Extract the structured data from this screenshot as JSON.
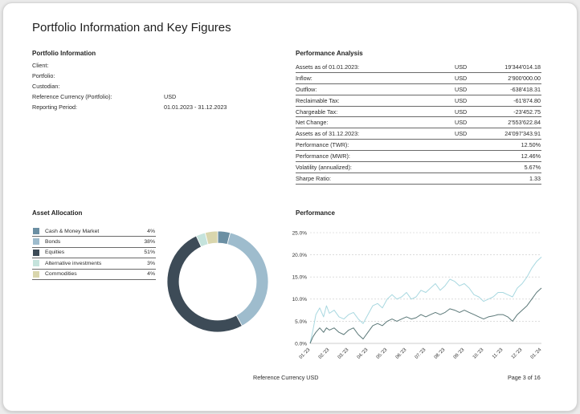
{
  "document": {
    "title": "Portfolio Information and Key Figures",
    "footer_center": "Reference Currency USD",
    "footer_page": "Page 3 of 16"
  },
  "portfolio_info": {
    "title": "Portfolio Information",
    "rows": [
      {
        "label": "Client:",
        "value": ""
      },
      {
        "label": "Portfolio:",
        "value": ""
      },
      {
        "label": "Custodian:",
        "value": ""
      },
      {
        "label": "Reference Currency (Portfolio):",
        "value": "USD"
      },
      {
        "label": "Reporting Period:",
        "value": "01.01.2023 - 31.12.2023"
      }
    ]
  },
  "performance_analysis": {
    "title": "Performance Analysis",
    "rows": [
      {
        "label": "Assets as of 01.01.2023:",
        "currency": "USD",
        "value": "19'344'014.18"
      },
      {
        "label": "Inflow:",
        "currency": "USD",
        "value": "2'900'000.00"
      },
      {
        "label": "Outflow:",
        "currency": "USD",
        "value": "-638'418.31"
      },
      {
        "label": "Reclaimable Tax:",
        "currency": "USD",
        "value": "-61'874.80"
      },
      {
        "label": "Chargeable Tax:",
        "currency": "USD",
        "value": "-23'452.75"
      },
      {
        "label": "Net Change:",
        "currency": "USD",
        "value": "2'553'622.84"
      },
      {
        "label": "Assets as of 31.12.2023:",
        "currency": "USD",
        "value": "24'097'343.91"
      },
      {
        "label": "Performance (TWR):",
        "currency": "",
        "value": "12.50%"
      },
      {
        "label": "Performance (MWR):",
        "currency": "",
        "value": "12.46%"
      },
      {
        "label": "Volatility (annualized):",
        "currency": "",
        "value": "5.67%"
      },
      {
        "label": "Sharpe Ratio:",
        "currency": "",
        "value": "1.33"
      }
    ]
  },
  "asset_allocation": {
    "title": "Asset Allocation",
    "items": [
      {
        "label": "Cash & Money Market",
        "value_text": "4%",
        "color": "#6b8fa3"
      },
      {
        "label": "Bonds",
        "value_text": "38%",
        "color": "#9ebccd"
      },
      {
        "label": "Equities",
        "value_text": "51%",
        "color": "#3d4b57"
      },
      {
        "label": "Alternative investments",
        "value_text": "3%",
        "color": "#c5e3dc"
      },
      {
        "label": "Commodities",
        "value_text": "4%",
        "color": "#d9d6ad"
      }
    ]
  },
  "performance_chart": {
    "title": "Performance"
  },
  "chart_data": [
    {
      "type": "pie",
      "variant": "donut",
      "labels": [
        "Cash & Money Market",
        "Bonds",
        "Equities",
        "Alternative investments",
        "Commodities"
      ],
      "values": [
        4,
        38,
        51,
        3,
        4
      ],
      "colors": [
        "#6b8fa3",
        "#9ebccd",
        "#3d4b57",
        "#c5e3dc",
        "#d9d6ad"
      ],
      "start_angle_deg": 0,
      "clockwise": true
    },
    {
      "type": "line",
      "title": "",
      "xlabel": "",
      "ylabel": "",
      "x_ticks": [
        "01.'23",
        "02.'23",
        "03.'23",
        "04.'23",
        "05.'23",
        "06.'23",
        "07.'23",
        "08.'23",
        "09.'23",
        "10.'23",
        "11.'23",
        "12.'23",
        "01.'24"
      ],
      "y_ticks": [
        "0.0%",
        "5.0%",
        "10.0%",
        "15.0%",
        "20.0%",
        "25.0%"
      ],
      "y_tick_values": [
        0,
        5,
        10,
        15,
        20,
        25
      ],
      "ylim": [
        0,
        25
      ],
      "grid": "horizontal-dashed",
      "legend": "none",
      "series": [
        {
          "color": "#a8d8e0",
          "x": [
            0,
            0.15,
            0.3,
            0.5,
            0.7,
            0.85,
            1.0,
            1.25,
            1.5,
            1.75,
            2.0,
            2.25,
            2.5,
            2.75,
            3.0,
            3.25,
            3.5,
            3.75,
            4.0,
            4.25,
            4.5,
            4.75,
            5.0,
            5.25,
            5.5,
            5.75,
            6.0,
            6.25,
            6.5,
            6.75,
            7.0,
            7.25,
            7.5,
            7.75,
            8.0,
            8.25,
            8.5,
            8.75,
            9.0,
            9.25,
            9.5,
            9.75,
            10.0,
            10.25,
            10.5,
            10.75,
            11.0,
            11.25,
            11.5,
            11.75,
            12.0
          ],
          "y": [
            0,
            3.0,
            6.5,
            8.0,
            6.0,
            8.5,
            6.8,
            7.5,
            6.0,
            5.5,
            6.5,
            7.0,
            5.5,
            4.5,
            6.5,
            8.5,
            9.0,
            8.0,
            10.0,
            11.0,
            10.0,
            10.5,
            11.5,
            10.0,
            10.5,
            12.0,
            11.5,
            12.5,
            13.5,
            12.0,
            13.0,
            14.5,
            14.0,
            13.0,
            13.5,
            12.5,
            11.0,
            10.5,
            9.5,
            10.0,
            10.5,
            11.5,
            11.5,
            11.0,
            10.5,
            12.5,
            13.5,
            15.0,
            17.0,
            18.5,
            19.5
          ]
        },
        {
          "color": "#5b7878",
          "x": [
            0,
            0.15,
            0.3,
            0.5,
            0.7,
            0.85,
            1.0,
            1.25,
            1.5,
            1.75,
            2.0,
            2.25,
            2.5,
            2.75,
            3.0,
            3.25,
            3.5,
            3.75,
            4.0,
            4.25,
            4.5,
            4.75,
            5.0,
            5.25,
            5.5,
            5.75,
            6.0,
            6.25,
            6.5,
            6.75,
            7.0,
            7.25,
            7.5,
            7.75,
            8.0,
            8.25,
            8.5,
            8.75,
            9.0,
            9.25,
            9.5,
            9.75,
            10.0,
            10.25,
            10.5,
            10.75,
            11.0,
            11.25,
            11.5,
            11.75,
            12.0
          ],
          "y": [
            0,
            1.5,
            2.5,
            3.5,
            2.5,
            3.5,
            3.0,
            3.5,
            2.5,
            2.0,
            3.0,
            3.5,
            2.0,
            1.0,
            2.5,
            4.0,
            4.5,
            4.0,
            5.0,
            5.5,
            5.0,
            5.5,
            6.0,
            5.5,
            5.8,
            6.5,
            6.0,
            6.5,
            7.0,
            6.5,
            7.0,
            7.8,
            7.5,
            7.0,
            7.5,
            7.0,
            6.5,
            6.0,
            5.5,
            6.0,
            6.2,
            6.5,
            6.5,
            6.0,
            5.0,
            6.5,
            7.5,
            8.5,
            10.0,
            11.5,
            12.5
          ]
        }
      ]
    }
  ]
}
